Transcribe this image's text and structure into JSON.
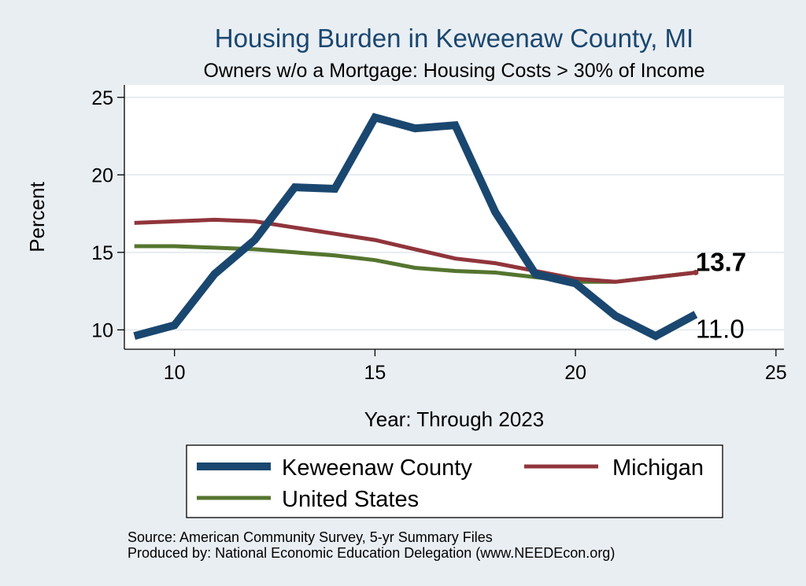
{
  "chart_data": {
    "type": "line",
    "title": "Housing Burden in Keweenaw County, MI",
    "subtitle": "Owners w/o a Mortgage: Housing Costs > 30% of Income",
    "xlabel": "Year: Through 2023",
    "ylabel": "Percent",
    "xlim": [
      8.75,
      25.2
    ],
    "ylim": [
      8.75,
      25.8
    ],
    "x_ticks": [
      10,
      15,
      20,
      25
    ],
    "y_ticks": [
      10,
      15,
      20,
      25
    ],
    "grid": true,
    "legend_position": "bottom",
    "x": [
      9,
      10,
      11,
      12,
      13,
      14,
      15,
      16,
      17,
      18,
      19,
      20,
      21,
      22,
      23
    ],
    "series": [
      {
        "name": "Keweenaw County",
        "color": "#1a476f",
        "values": [
          9.6,
          10.3,
          13.6,
          15.8,
          19.2,
          19.1,
          23.7,
          23.0,
          23.2,
          17.6,
          13.6,
          13.0,
          10.9,
          9.6,
          11.0
        ]
      },
      {
        "name": "Michigan",
        "color": "#90353b",
        "values": [
          16.9,
          17.0,
          17.1,
          17.0,
          16.6,
          16.2,
          15.8,
          15.2,
          14.6,
          14.3,
          13.8,
          13.3,
          13.1,
          13.4,
          13.7
        ]
      },
      {
        "name": "United States",
        "color": "#55752f",
        "values": [
          15.4,
          15.4,
          15.3,
          15.2,
          15.0,
          14.8,
          14.5,
          14.0,
          13.8,
          13.7,
          13.4,
          13.1,
          13.1,
          13.4,
          13.7
        ]
      }
    ],
    "end_labels": [
      {
        "text": "13.7",
        "x": 23,
        "y": 13.7,
        "bold": true
      },
      {
        "text": "11.0",
        "x": 23,
        "y": 11.0,
        "bold": false
      }
    ],
    "notes": [
      "Source: American Community Survey, 5-yr Summary Files",
      "Produced by: National Economic Education Delegation (www.NEEDEcon.org)"
    ]
  }
}
